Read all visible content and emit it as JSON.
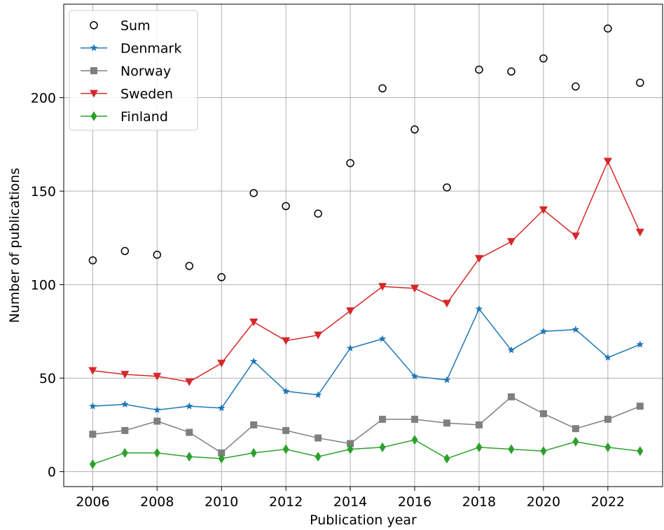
{
  "chart_data": {
    "type": "line",
    "title": "",
    "xlabel": "Publication year",
    "ylabel": "Number of publications",
    "x": [
      2006,
      2007,
      2008,
      2009,
      2010,
      2011,
      2012,
      2013,
      2014,
      2015,
      2016,
      2017,
      2018,
      2019,
      2020,
      2021,
      2022,
      2023
    ],
    "xticks": [
      2006,
      2008,
      2010,
      2012,
      2014,
      2016,
      2018,
      2020,
      2022
    ],
    "yticks": [
      0,
      50,
      100,
      150,
      200
    ],
    "xlim": [
      2005.1,
      2023.7
    ],
    "ylim": [
      -8,
      250
    ],
    "grid": true,
    "legend_position": "top-left",
    "series": [
      {
        "name": "Sum",
        "style": "scatter",
        "marker": "open-circle",
        "color": "#000000",
        "values": [
          113,
          118,
          116,
          110,
          104,
          149,
          142,
          138,
          165,
          205,
          183,
          152,
          215,
          214,
          221,
          206,
          237,
          208
        ]
      },
      {
        "name": "Denmark",
        "style": "line",
        "marker": "star",
        "color": "#1f77b4",
        "values": [
          35,
          36,
          33,
          35,
          34,
          59,
          43,
          41,
          66,
          71,
          51,
          49,
          87,
          65,
          75,
          76,
          61,
          68
        ]
      },
      {
        "name": "Norway",
        "style": "line",
        "marker": "square",
        "color": "#7f7f7f",
        "values": [
          20,
          22,
          27,
          21,
          10,
          25,
          22,
          18,
          15,
          28,
          28,
          26,
          25,
          40,
          31,
          23,
          28,
          35
        ]
      },
      {
        "name": "Sweden",
        "style": "line",
        "marker": "triangle-down",
        "color": "#d62728",
        "values": [
          54,
          52,
          51,
          48,
          58,
          80,
          70,
          73,
          86,
          99,
          98,
          90,
          114,
          123,
          140,
          126,
          166,
          128
        ]
      },
      {
        "name": "Finland",
        "style": "line",
        "marker": "diamond",
        "color": "#2ca02c",
        "values": [
          4,
          10,
          10,
          8,
          7,
          10,
          12,
          8,
          12,
          13,
          17,
          7,
          13,
          12,
          11,
          16,
          13,
          11
        ]
      }
    ]
  }
}
